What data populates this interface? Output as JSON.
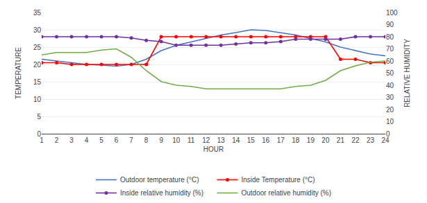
{
  "chart_data": {
    "type": "line",
    "xlabel": "HOUR",
    "ylabel": "TEMPERATURE",
    "y2label": "RELATIVE HUMIDITY",
    "x": [
      1,
      2,
      3,
      4,
      5,
      6,
      7,
      8,
      9,
      10,
      11,
      12,
      13,
      14,
      15,
      16,
      17,
      18,
      19,
      20,
      21,
      22,
      23,
      24
    ],
    "series": [
      {
        "name": "Outdoor temperature (°C)",
        "color": "#4472C4",
        "axis": "y",
        "values": [
          21.5,
          21.0,
          20.5,
          20.0,
          19.8,
          19.5,
          20.0,
          21.5,
          24.0,
          25.5,
          26.5,
          27.5,
          28.5,
          29.2,
          30.0,
          29.8,
          29.2,
          28.5,
          27.5,
          26.5,
          25.0,
          24.0,
          23.0,
          22.5
        ]
      },
      {
        "name": "Inside Temperature (°C)",
        "color": "#FF0000",
        "axis": "y",
        "marker": "circle",
        "values": [
          20.5,
          20.5,
          20.0,
          20.0,
          20.0,
          20.0,
          20.0,
          20.0,
          28.0,
          28.0,
          28.0,
          28.0,
          28.0,
          28.0,
          28.0,
          28.0,
          28.0,
          28.0,
          28.0,
          28.0,
          21.5,
          21.5,
          20.5,
          20.5
        ]
      },
      {
        "name": "Inside relative humidity (%)",
        "color": "#7030A0",
        "axis": "y2",
        "marker": "circle",
        "values": [
          80,
          80,
          80,
          80,
          80,
          80,
          79,
          77,
          76,
          73,
          73,
          73,
          73,
          74,
          75,
          75,
          76,
          78,
          78,
          78,
          78,
          80,
          80,
          80
        ]
      },
      {
        "name": "Outdoor relative humidity (%)",
        "color": "#70AD47",
        "axis": "y2",
        "values": [
          65,
          67,
          67,
          67,
          69,
          70,
          63,
          52,
          43,
          40,
          39,
          37,
          37,
          37,
          37,
          37,
          37,
          39,
          40,
          44,
          52,
          56,
          59,
          60
        ]
      }
    ],
    "xlim": [
      1,
      24
    ],
    "xticks": [
      1,
      2,
      3,
      4,
      5,
      6,
      7,
      8,
      9,
      10,
      11,
      12,
      13,
      14,
      15,
      16,
      17,
      18,
      19,
      20,
      21,
      22,
      23,
      24
    ],
    "ylim": [
      0,
      35
    ],
    "yticks": [
      0,
      5,
      10,
      15,
      20,
      25,
      30,
      35
    ],
    "y2lim": [
      0,
      100
    ],
    "y2ticks": [
      0,
      10,
      20,
      30,
      40,
      50,
      60,
      70,
      80,
      90,
      100
    ],
    "grid": true,
    "legend": "bottom"
  }
}
